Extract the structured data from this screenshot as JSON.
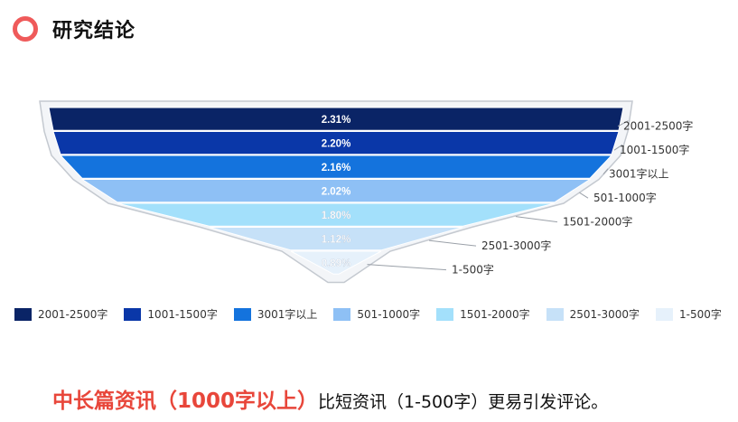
{
  "header": {
    "title": "研究结论"
  },
  "chart_data": {
    "type": "funnel",
    "categories": [
      "2001-2500字",
      "1001-1500字",
      "3001字以上",
      "501-1000字",
      "1501-2000字",
      "2501-3000字",
      "1-500字"
    ],
    "values": [
      2.31,
      2.2,
      2.16,
      2.02,
      1.8,
      1.12,
      0.89
    ],
    "value_labels": [
      "2.31%",
      "2.20%",
      "2.16%",
      "2.02%",
      "1.80%",
      "1.12%",
      "0.89%"
    ],
    "colors": [
      "#0a2466",
      "#0a37a8",
      "#1473dd",
      "#8ec0f5",
      "#a3e0fb",
      "#c6e1f8",
      "#e6f1fb"
    ],
    "legend_position": "bottom"
  },
  "legend": [
    "2001-2500字",
    "1001-1500字",
    "3001字以上",
    "501-1000字",
    "1501-2000字",
    "2501-3000字",
    "1-500字"
  ],
  "conclusion": {
    "highlight": "中长篇资讯（1000字以上）",
    "rest": "比短资讯（1-500字）更易引发评论。"
  }
}
